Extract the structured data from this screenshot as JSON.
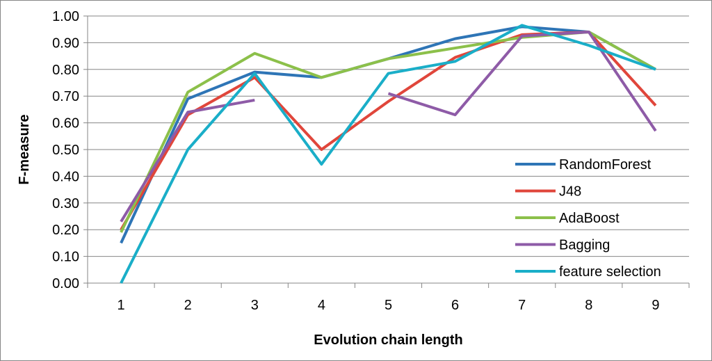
{
  "chart_data": {
    "type": "line",
    "title": "",
    "xlabel": "Evolution chain length",
    "ylabel": "F-measure",
    "x": [
      1,
      2,
      3,
      4,
      5,
      6,
      7,
      8,
      9
    ],
    "x_tick_labels": [
      "1",
      "2",
      "3",
      "4",
      "5",
      "6",
      "7",
      "8",
      "9"
    ],
    "ylim": [
      0,
      1
    ],
    "y_ticks": [
      0.0,
      0.1,
      0.2,
      0.3,
      0.4,
      0.5,
      0.6,
      0.7,
      0.8,
      0.9,
      1.0
    ],
    "y_tick_labels": [
      "0.00",
      "0.10",
      "0.20",
      "0.30",
      "0.40",
      "0.50",
      "0.60",
      "0.70",
      "0.80",
      "0.90",
      "1.00"
    ],
    "grid": "horizontal",
    "legend_position": "bottom-right",
    "series": [
      {
        "name": "RandomForest",
        "color": "#2E75B6",
        "values": [
          0.15,
          0.69,
          0.79,
          0.77,
          0.84,
          0.915,
          0.96,
          0.94,
          0.8
        ]
      },
      {
        "name": "J48",
        "color": "#E0463B",
        "values": [
          0.2,
          0.63,
          0.77,
          0.5,
          0.68,
          0.845,
          0.93,
          0.94,
          0.665
        ]
      },
      {
        "name": "AdaBoost",
        "color": "#8CC04A",
        "values": [
          0.19,
          0.715,
          0.86,
          0.77,
          0.84,
          0.88,
          0.92,
          0.94,
          0.8
        ]
      },
      {
        "name": "Bagging",
        "color": "#8E5BA7",
        "values": [
          0.23,
          0.64,
          0.685,
          null,
          0.71,
          0.63,
          0.925,
          0.94,
          0.57
        ]
      },
      {
        "name": "feature selection",
        "color": "#1AAEC8",
        "values": [
          0.0,
          0.5,
          0.785,
          0.445,
          0.785,
          0.83,
          0.965,
          0.89,
          0.8
        ]
      }
    ]
  }
}
